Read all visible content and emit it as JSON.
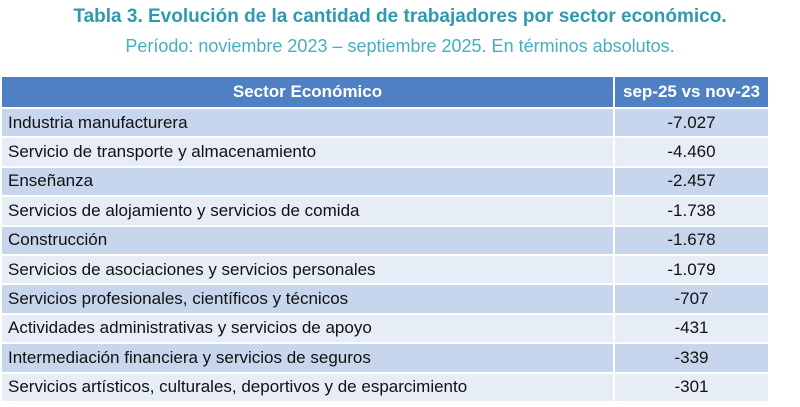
{
  "header": {
    "title": "Tabla 3. Evolución de la cantidad de trabajadores por sector económico.",
    "subtitle": "Período: noviembre 2023 – septiembre 2025. En términos absolutos."
  },
  "table": {
    "columns": [
      "Sector Económico",
      "sep-25 vs nov-23"
    ],
    "rows": [
      [
        "Industria manufacturera",
        "-7.027"
      ],
      [
        "Servicio de transporte y almacenamiento",
        "-4.460"
      ],
      [
        "Enseñanza",
        "-2.457"
      ],
      [
        "Servicios de alojamiento y servicios de comida",
        "-1.738"
      ],
      [
        "Construcción",
        "-1.678"
      ],
      [
        "Servicios de asociaciones y servicios personales",
        "-1.079"
      ],
      [
        "Servicios profesionales, científicos y técnicos",
        "-707"
      ],
      [
        "Actividades administrativas y servicios de apoyo",
        "-431"
      ],
      [
        "Intermediación financiera y servicios de seguros",
        "-339"
      ],
      [
        "Servicios artísticos, culturales, deportivos y de esparcimiento",
        "-301"
      ]
    ]
  }
}
